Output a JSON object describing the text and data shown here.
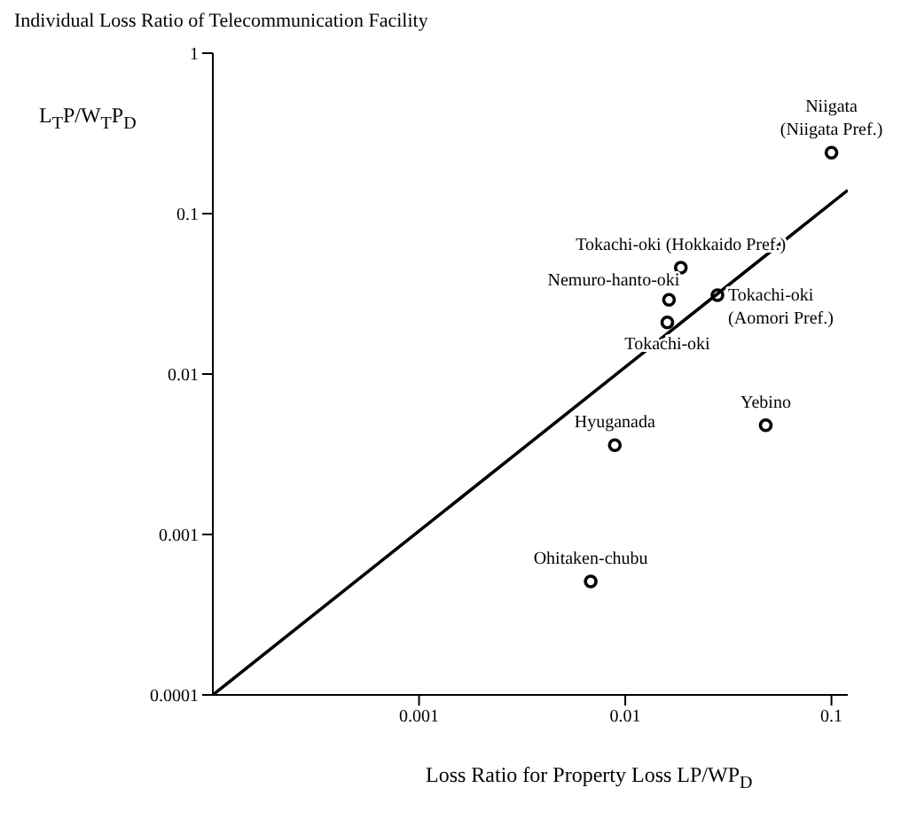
{
  "chart_data": {
    "type": "scatter",
    "title": "Individual Loss Ratio of Telecommunication Facility",
    "xlabel": "Loss Ratio for Property Loss LP/WP$_{D}$",
    "ylabel": "L$_{T}$P/W$_{T}$P$_{D}$",
    "log": "xy",
    "grid": false,
    "legend": false,
    "marker": "circle",
    "xlim": [
      0.0001,
      0.12
    ],
    "xticks": [
      0.001,
      0.01,
      0.1
    ],
    "ylim": [
      0.0001,
      1
    ],
    "yticks": [
      0.0001,
      0.001,
      0.01,
      0.1,
      1
    ],
    "series": [
      {
        "type": "scatter",
        "color": "#000000",
        "x": [
          0.1,
          0.0186,
          0.0163,
          0.028,
          0.016,
          0.048,
          0.0089,
          0.0068
        ],
        "values": [
          0.24,
          0.046,
          0.029,
          0.031,
          0.021,
          0.0048,
          0.0036,
          0.00051
        ]
      },
      {
        "type": "line",
        "color": "#000000",
        "marker": "none",
        "line_style": "solid",
        "x": [
          0.0001,
          0.12
        ],
        "values": [
          0.0001,
          0.14
        ]
      }
    ],
    "annotations": [
      {
        "text": "Niigata\n(Niigata Pref.)",
        "x": 0.1,
        "y": 0.24
      },
      {
        "text": "Tokachi-oki (Hokkaido Pref.)",
        "x": 0.0186,
        "y": 0.046
      },
      {
        "text": "Nemuro-hanto-oki",
        "x": 0.0163,
        "y": 0.029
      },
      {
        "text": "Tokachi-oki\n(Aomori Pref.)",
        "x": 0.028,
        "y": 0.031
      },
      {
        "text": "Tokachi-oki",
        "x": 0.016,
        "y": 0.021
      },
      {
        "text": "Yebino",
        "x": 0.048,
        "y": 0.0048
      },
      {
        "text": "Hyuganada",
        "x": 0.0089,
        "y": 0.0036
      },
      {
        "text": "Ohitaken-chubu",
        "x": 0.0068,
        "y": 0.00051
      }
    ]
  }
}
